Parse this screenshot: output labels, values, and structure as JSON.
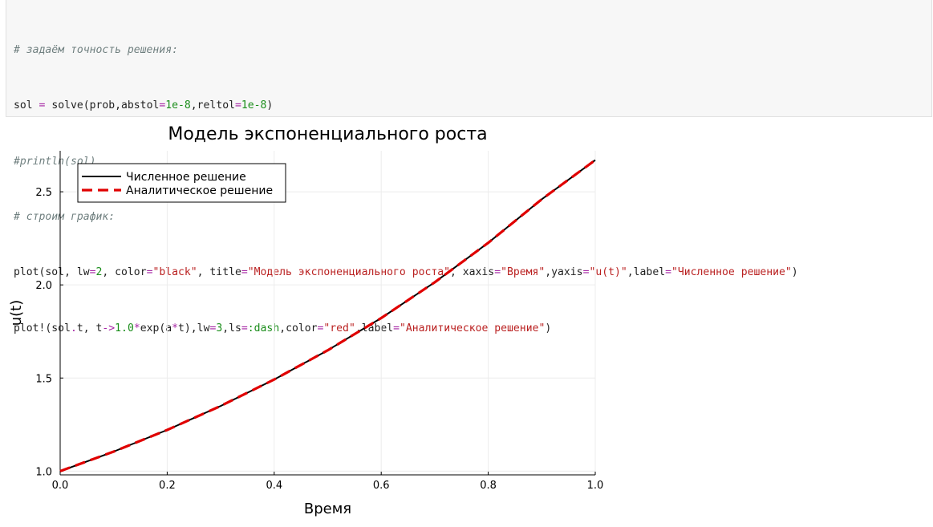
{
  "code": {
    "line1": "# задаём точность решения:",
    "line2": [
      {
        "t": "sol ",
        "c": ""
      },
      {
        "t": "=",
        "c": "op"
      },
      {
        "t": " solve(prob,abstol",
        "c": ""
      },
      {
        "t": "=",
        "c": "op"
      },
      {
        "t": "1e-8",
        "c": "num"
      },
      {
        "t": ",reltol",
        "c": ""
      },
      {
        "t": "=",
        "c": "op"
      },
      {
        "t": "1e-8",
        "c": "num"
      },
      {
        "t": ")",
        "c": ""
      }
    ],
    "line3": "#println(sol)",
    "line4": "# строим график:",
    "line5": [
      {
        "t": "plot(sol, lw",
        "c": ""
      },
      {
        "t": "=",
        "c": "op"
      },
      {
        "t": "2",
        "c": "num"
      },
      {
        "t": ", color",
        "c": ""
      },
      {
        "t": "=",
        "c": "op"
      },
      {
        "t": "\"black\"",
        "c": "str"
      },
      {
        "t": ", title",
        "c": ""
      },
      {
        "t": "=",
        "c": "op"
      },
      {
        "t": "\"Модель экспоненциального роста\"",
        "c": "str"
      },
      {
        "t": ", xaxis",
        "c": ""
      },
      {
        "t": "=",
        "c": "op"
      },
      {
        "t": "\"Время\"",
        "c": "str"
      },
      {
        "t": ",yaxis",
        "c": ""
      },
      {
        "t": "=",
        "c": "op"
      },
      {
        "t": "\"u(t)\"",
        "c": "str"
      },
      {
        "t": ",label",
        "c": ""
      },
      {
        "t": "=",
        "c": "op"
      },
      {
        "t": "\"Численное решение\"",
        "c": "str"
      },
      {
        "t": ")",
        "c": ""
      }
    ],
    "line6": [
      {
        "t": "plot!(sol",
        "c": ""
      },
      {
        "t": ".",
        "c": "op"
      },
      {
        "t": "t, t",
        "c": ""
      },
      {
        "t": "->",
        "c": "op"
      },
      {
        "t": "1.0",
        "c": "num"
      },
      {
        "t": "*",
        "c": "op"
      },
      {
        "t": "exp(a",
        "c": ""
      },
      {
        "t": "*",
        "c": "op"
      },
      {
        "t": "t),lw",
        "c": ""
      },
      {
        "t": "=",
        "c": "op"
      },
      {
        "t": "3",
        "c": "num"
      },
      {
        "t": ",ls",
        "c": ""
      },
      {
        "t": "=",
        "c": "op"
      },
      {
        "t": ":dash",
        "c": "sym"
      },
      {
        "t": ",color",
        "c": ""
      },
      {
        "t": "=",
        "c": "op"
      },
      {
        "t": "\"red\"",
        "c": "str"
      },
      {
        "t": ",label",
        "c": ""
      },
      {
        "t": "=",
        "c": "op"
      },
      {
        "t": "\"Аналитическое решение\"",
        "c": "str"
      },
      {
        "t": ")",
        "c": ""
      }
    ]
  },
  "chart_data": {
    "type": "line",
    "title": "Модель экспоненциального роста",
    "xlabel": "Время",
    "ylabel": "u(t)",
    "xlim": [
      0.0,
      1.0
    ],
    "ylim": [
      0.98,
      2.72
    ],
    "xticks": [
      "0.0",
      "0.2",
      "0.4",
      "0.6",
      "0.8",
      "1.0"
    ],
    "yticks": [
      "1.0",
      "1.5",
      "2.0",
      "2.5"
    ],
    "grid": true,
    "legend_position": "top-left",
    "series": [
      {
        "name": "Численное решение",
        "color": "#000000",
        "style": "solid",
        "x": [
          0.0,
          0.1,
          0.2,
          0.3,
          0.4,
          0.5,
          0.6,
          0.7,
          0.8,
          0.9,
          1.0
        ],
        "values": [
          1.0,
          1.105,
          1.221,
          1.35,
          1.492,
          1.649,
          1.822,
          2.014,
          2.226,
          2.46,
          2.67
        ]
      },
      {
        "name": "Аналитическое решение",
        "color": "#e00000",
        "style": "dash",
        "x": [
          0.0,
          0.1,
          0.2,
          0.3,
          0.4,
          0.5,
          0.6,
          0.7,
          0.8,
          0.9,
          1.0
        ],
        "values": [
          1.0,
          1.105,
          1.221,
          1.35,
          1.492,
          1.649,
          1.822,
          2.014,
          2.226,
          2.46,
          2.67
        ]
      }
    ]
  }
}
